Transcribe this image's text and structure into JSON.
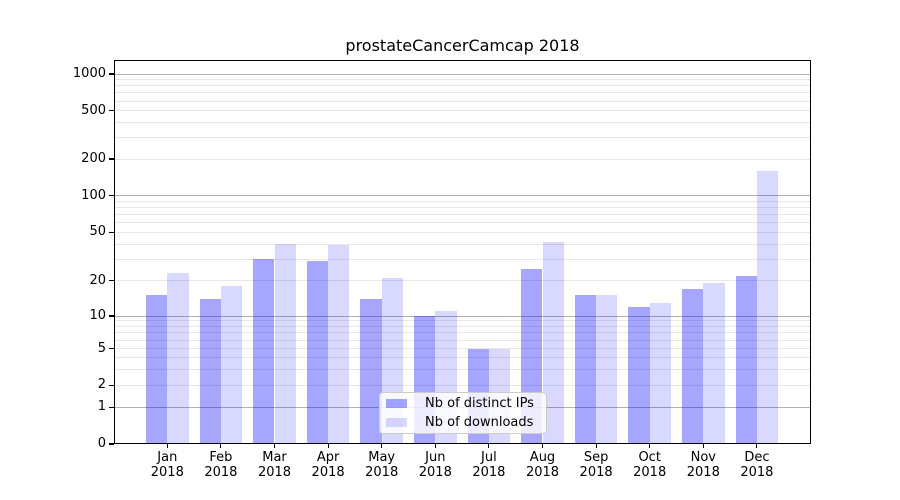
{
  "title": "prostateCancerCamcap 2018",
  "chart_data": {
    "type": "bar",
    "title": "prostateCancerCamcap 2018",
    "categories": [
      "Jan 2018",
      "Feb 2018",
      "Mar 2018",
      "Apr 2018",
      "May 2018",
      "Jun 2018",
      "Jul 2018",
      "Aug 2018",
      "Sep 2018",
      "Oct 2018",
      "Nov 2018",
      "Dec 2018"
    ],
    "series": [
      {
        "name": "Nb of distinct IPs",
        "color": "rgba(0,0,255,0.35)",
        "color_hex": "#a6a6f2",
        "values": [
          15,
          14,
          30,
          29,
          14,
          10,
          5,
          25,
          15,
          12,
          17,
          22
        ]
      },
      {
        "name": "Nb of downloads",
        "color": "rgba(0,0,255,0.15)",
        "color_hex": "#d9d9f9",
        "values": [
          23,
          18,
          40,
          39,
          21,
          11,
          5,
          42,
          15,
          13,
          19,
          160
        ]
      }
    ],
    "xlabel": "",
    "ylabel": "",
    "yscale": "symlog",
    "ylim": [
      0,
      1000
    ],
    "yticks": [
      0,
      1,
      2,
      5,
      10,
      20,
      50,
      100,
      200,
      500,
      1000
    ],
    "grid": "both",
    "grid_major_color": "#b2b2b2",
    "grid_minor_color": "#e7e7e7",
    "legend_position": "lower center"
  }
}
